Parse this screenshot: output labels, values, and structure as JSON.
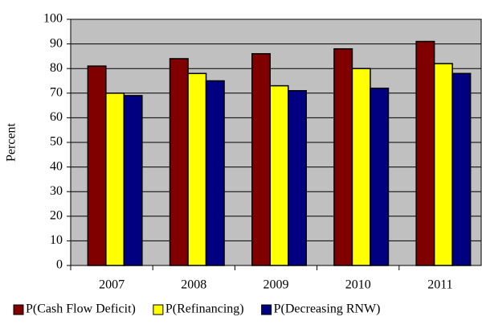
{
  "chart_data": {
    "type": "bar",
    "ylabel": "Percent",
    "categories": [
      "2007",
      "2008",
      "2009",
      "2010",
      "2011"
    ],
    "series": [
      {
        "name": "P(Cash Flow Deficit)",
        "color": "#800000",
        "values": [
          81,
          84,
          86,
          88,
          91
        ]
      },
      {
        "name": "P(Refinancing)",
        "color": "#ffff00",
        "values": [
          70,
          78,
          73,
          80,
          82
        ]
      },
      {
        "name": "P(Decreasing RNW)",
        "color": "#000080",
        "values": [
          69,
          75,
          71,
          72,
          78
        ]
      }
    ],
    "ylim": [
      0,
      100
    ],
    "yticks": [
      0,
      10,
      20,
      30,
      40,
      50,
      60,
      70,
      80,
      90,
      100
    ],
    "grid": true,
    "plot_background": "#c0c0c0",
    "legend": "bottom"
  }
}
